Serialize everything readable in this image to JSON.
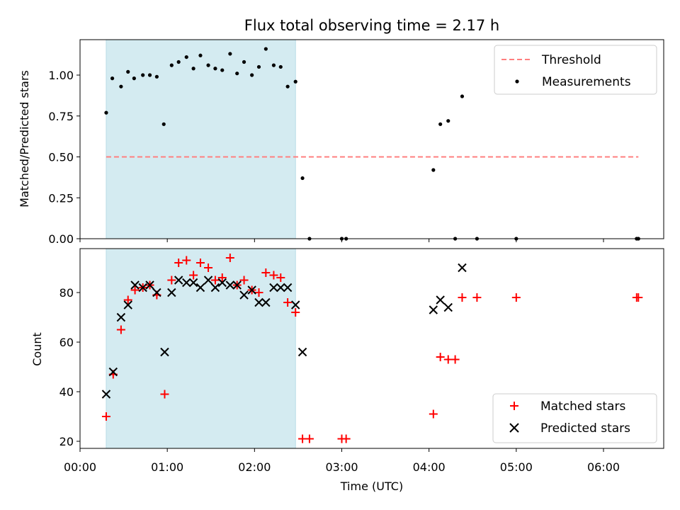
{
  "figure": {
    "title": "Flux total observing time = 2.17 h",
    "xlabel": "Time (UTC)",
    "x_ticks": [
      "00:00",
      "01:00",
      "02:00",
      "03:00",
      "04:00",
      "05:00",
      "06:00"
    ],
    "highlight_color": "#d4ebf1",
    "threshold_color": "#ff7f7f",
    "matched_color": "#ff0000",
    "predicted_color": "#000000"
  },
  "chart_data": [
    {
      "type": "scatter",
      "ylabel": "Matched/Predicted stars",
      "xlim_hours": [
        0,
        6.7
      ],
      "ylim": [
        0,
        1.2
      ],
      "y_ticks": [
        "0.00",
        "0.25",
        "0.50",
        "0.75",
        "1.00"
      ],
      "legend_position": "top-right",
      "shaded_span_hours": [
        0.3,
        2.47
      ],
      "threshold": {
        "name": "Threshold",
        "value": 0.5,
        "x_range_hours": [
          0.3,
          6.4
        ]
      },
      "series": [
        {
          "name": "Measurements",
          "points": [
            [
              0.3,
              0.77
            ],
            [
              0.37,
              0.98
            ],
            [
              0.47,
              0.93
            ],
            [
              0.55,
              1.02
            ],
            [
              0.62,
              0.98
            ],
            [
              0.72,
              1.0
            ],
            [
              0.8,
              1.0
            ],
            [
              0.88,
              0.99
            ],
            [
              0.96,
              0.7
            ],
            [
              1.05,
              1.06
            ],
            [
              1.13,
              1.08
            ],
            [
              1.22,
              1.11
            ],
            [
              1.3,
              1.04
            ],
            [
              1.38,
              1.12
            ],
            [
              1.47,
              1.06
            ],
            [
              1.55,
              1.04
            ],
            [
              1.63,
              1.03
            ],
            [
              1.72,
              1.13
            ],
            [
              1.8,
              1.01
            ],
            [
              1.88,
              1.08
            ],
            [
              1.97,
              1.0
            ],
            [
              2.05,
              1.05
            ],
            [
              2.13,
              1.16
            ],
            [
              2.22,
              1.06
            ],
            [
              2.3,
              1.05
            ],
            [
              2.38,
              0.93
            ],
            [
              2.47,
              0.96
            ],
            [
              2.55,
              0.37
            ],
            [
              2.63,
              0.0
            ],
            [
              3.0,
              0.0
            ],
            [
              3.05,
              0.0
            ],
            [
              4.05,
              0.42
            ],
            [
              4.13,
              0.7
            ],
            [
              4.22,
              0.72
            ],
            [
              4.3,
              0.0
            ],
            [
              4.38,
              0.87
            ],
            [
              4.55,
              0.0
            ],
            [
              5.0,
              0.0
            ],
            [
              6.38,
              0.0
            ],
            [
              6.4,
              0.0
            ]
          ]
        }
      ]
    },
    {
      "type": "scatter",
      "ylabel": "Count",
      "xlim_hours": [
        0,
        6.7
      ],
      "ylim": [
        17,
        96
      ],
      "y_ticks": [
        "20",
        "40",
        "60",
        "80"
      ],
      "legend_position": "bottom-right",
      "shaded_span_hours": [
        0.3,
        2.47
      ],
      "series": [
        {
          "name": "Matched stars",
          "points": [
            [
              0.3,
              30
            ],
            [
              0.38,
              47
            ],
            [
              0.47,
              65
            ],
            [
              0.55,
              77
            ],
            [
              0.63,
              81
            ],
            [
              0.72,
              82
            ],
            [
              0.8,
              83
            ],
            [
              0.88,
              79
            ],
            [
              0.97,
              39
            ],
            [
              1.05,
              85
            ],
            [
              1.13,
              92
            ],
            [
              1.22,
              93
            ],
            [
              1.3,
              87
            ],
            [
              1.38,
              92
            ],
            [
              1.47,
              90
            ],
            [
              1.55,
              85
            ],
            [
              1.63,
              86
            ],
            [
              1.72,
              94
            ],
            [
              1.8,
              83
            ],
            [
              1.88,
              85
            ],
            [
              1.97,
              81
            ],
            [
              2.05,
              80
            ],
            [
              2.13,
              88
            ],
            [
              2.22,
              87
            ],
            [
              2.3,
              86
            ],
            [
              2.38,
              76
            ],
            [
              2.47,
              72
            ],
            [
              2.55,
              21
            ],
            [
              2.63,
              21
            ],
            [
              3.0,
              21
            ],
            [
              3.05,
              21
            ],
            [
              4.05,
              31
            ],
            [
              4.13,
              54
            ],
            [
              4.22,
              53
            ],
            [
              4.3,
              53
            ],
            [
              4.38,
              78
            ],
            [
              4.55,
              78
            ],
            [
              5.0,
              78
            ],
            [
              6.38,
              78
            ],
            [
              6.4,
              78
            ]
          ]
        },
        {
          "name": "Predicted stars",
          "points": [
            [
              0.3,
              39
            ],
            [
              0.38,
              48
            ],
            [
              0.47,
              70
            ],
            [
              0.55,
              75
            ],
            [
              0.63,
              83
            ],
            [
              0.72,
              82
            ],
            [
              0.8,
              83
            ],
            [
              0.88,
              80
            ],
            [
              0.97,
              56
            ],
            [
              1.05,
              80
            ],
            [
              1.13,
              85
            ],
            [
              1.22,
              84
            ],
            [
              1.3,
              84
            ],
            [
              1.38,
              82
            ],
            [
              1.47,
              85
            ],
            [
              1.55,
              82
            ],
            [
              1.63,
              84
            ],
            [
              1.72,
              83
            ],
            [
              1.8,
              83
            ],
            [
              1.88,
              79
            ],
            [
              1.97,
              81
            ],
            [
              2.05,
              76
            ],
            [
              2.13,
              76
            ],
            [
              2.22,
              82
            ],
            [
              2.3,
              82
            ],
            [
              2.38,
              82
            ],
            [
              2.47,
              75
            ],
            [
              2.55,
              56
            ],
            [
              4.05,
              73
            ],
            [
              4.13,
              77
            ],
            [
              4.22,
              74
            ],
            [
              4.38,
              90
            ]
          ]
        }
      ]
    }
  ]
}
